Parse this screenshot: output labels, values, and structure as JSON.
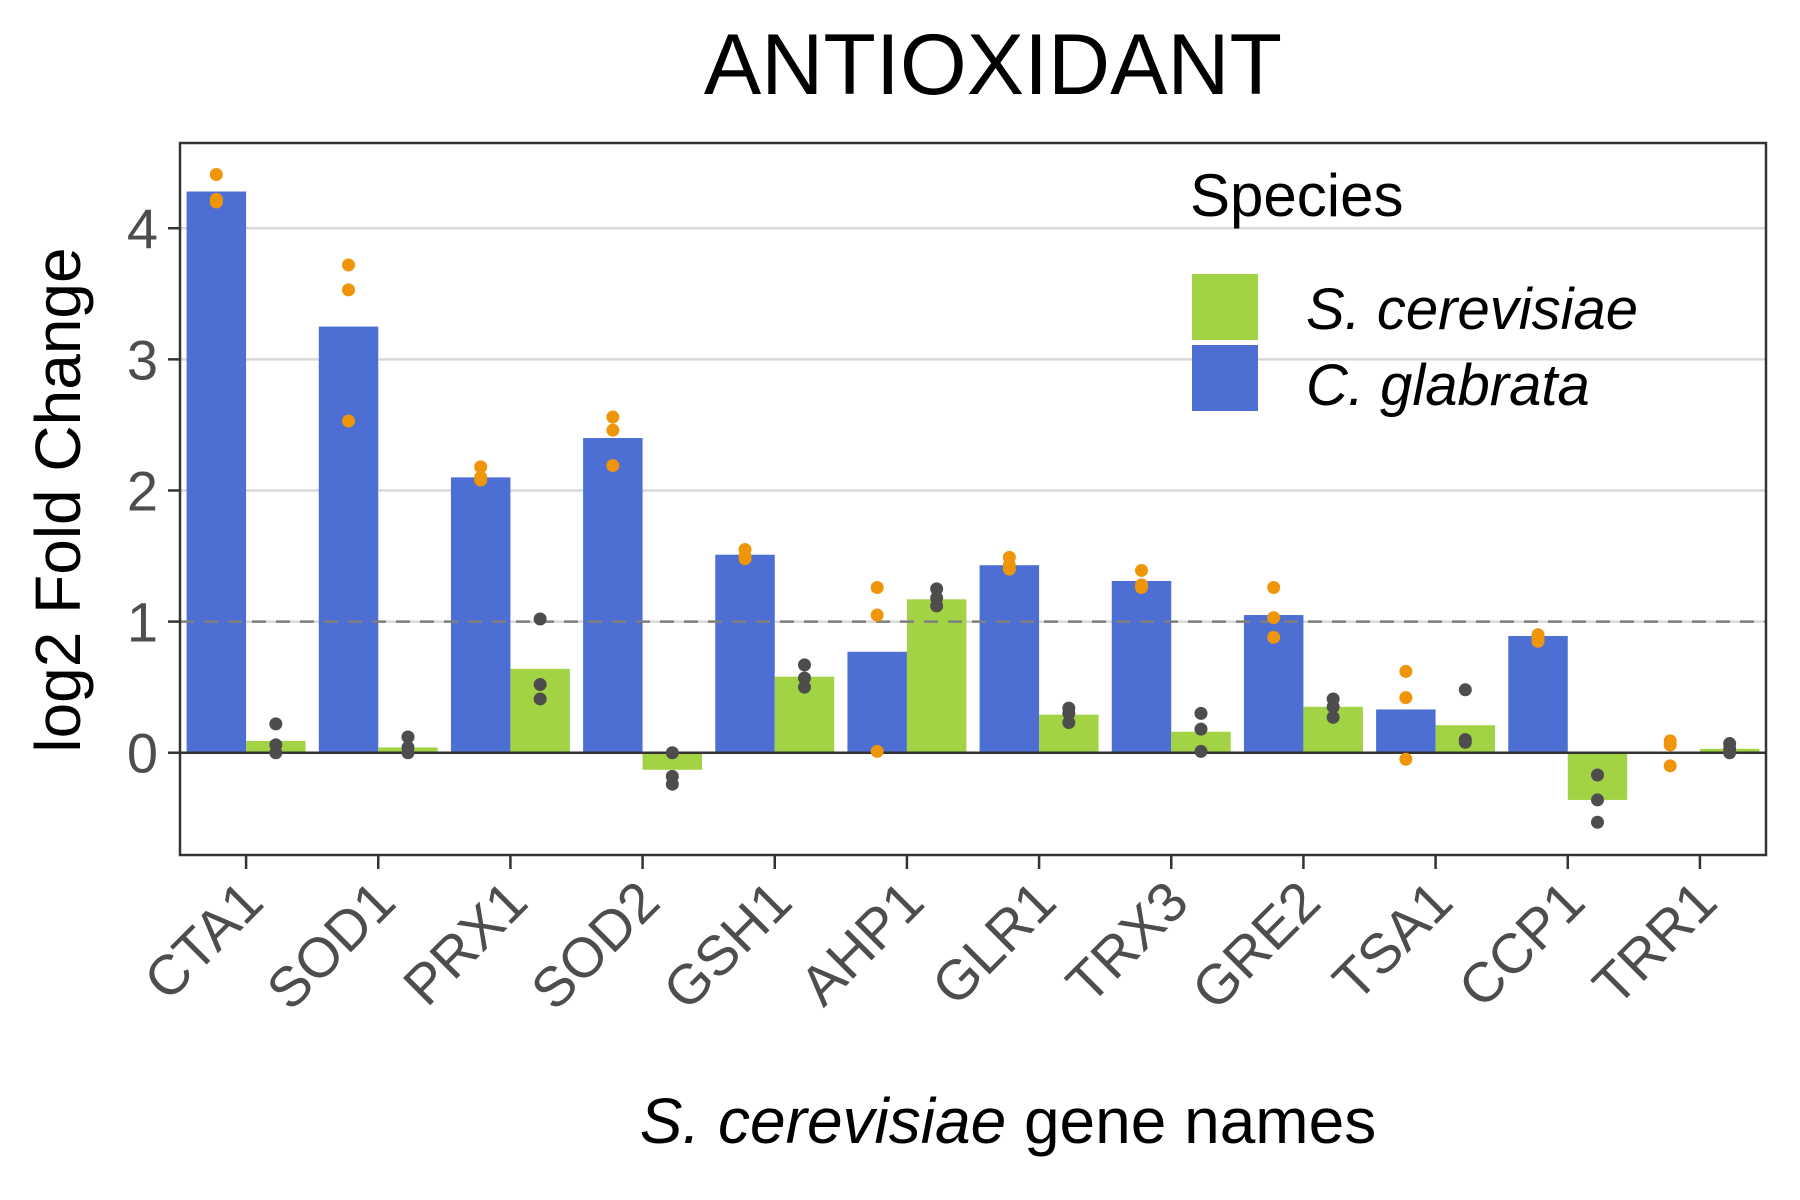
{
  "chart_data": {
    "type": "bar",
    "title": "ANTIOXIDANT",
    "xlabel_italic": "S. cerevisiae",
    "xlabel_rest": " gene names",
    "ylabel": "log2 Fold Change",
    "ylim": [
      -0.78,
      4.65
    ],
    "yticks": [
      0,
      1,
      2,
      3,
      4
    ],
    "reference_line": 1,
    "grid": "horizontal",
    "legend": {
      "title": "Species",
      "position": "top-right"
    },
    "categories": [
      "CTA1",
      "SOD1",
      "PRX1",
      "SOD2",
      "GSH1",
      "AHP1",
      "GLR1",
      "TRX3",
      "GRE2",
      "TSA1",
      "CCP1",
      "TRR1"
    ],
    "series": [
      {
        "name": "C. glabrata",
        "color": "#4d6fd4",
        "point_color": "#ef9509",
        "values": [
          4.28,
          3.25,
          2.1,
          2.4,
          1.51,
          0.77,
          1.43,
          1.31,
          1.05,
          0.33,
          0.89,
          null
        ],
        "points": [
          [
            4.41,
            4.2,
            4.22
          ],
          [
            3.72,
            3.53,
            2.53
          ],
          [
            2.18,
            2.08,
            2.1
          ],
          [
            2.56,
            2.46,
            2.19
          ],
          [
            1.55,
            1.48,
            1.5
          ],
          [
            1.26,
            1.05,
            0.01
          ],
          [
            1.49,
            1.4,
            1.43
          ],
          [
            1.39,
            1.26,
            1.28
          ],
          [
            1.26,
            1.03,
            0.88
          ],
          [
            0.62,
            0.42,
            -0.05
          ],
          [
            0.9,
            0.87,
            0.85
          ],
          [
            0.09,
            0.06,
            -0.1
          ]
        ]
      },
      {
        "name": "S. cerevisiae",
        "color": "#a2d345",
        "point_color": "#4d4d4d",
        "values": [
          0.09,
          0.04,
          0.64,
          -0.13,
          0.58,
          1.17,
          0.29,
          0.16,
          0.35,
          0.21,
          -0.36,
          0.03
        ],
        "points": [
          [
            0.22,
            0.06,
            0.0
          ],
          [
            0.12,
            0.04,
            0.0
          ],
          [
            1.02,
            0.52,
            0.41
          ],
          [
            0.0,
            -0.18,
            -0.24
          ],
          [
            0.67,
            0.57,
            0.5
          ],
          [
            1.25,
            1.18,
            1.12
          ],
          [
            0.34,
            0.3,
            0.23
          ],
          [
            0.3,
            0.18,
            0.01
          ],
          [
            0.41,
            0.35,
            0.27
          ],
          [
            0.48,
            0.1,
            0.08
          ],
          [
            -0.17,
            -0.36,
            -0.53
          ],
          [
            0.07,
            0.03,
            0.0
          ]
        ]
      }
    ]
  }
}
